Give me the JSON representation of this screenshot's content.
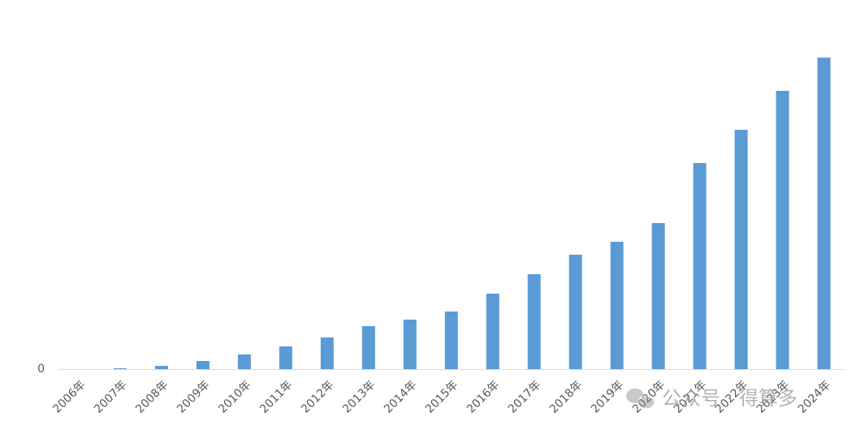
{
  "chart_data": {
    "type": "bar",
    "categories": [
      "2006年",
      "2007年",
      "2008年",
      "2009年",
      "2010年",
      "2011年",
      "2012年",
      "2013年",
      "2014年",
      "2015年",
      "2016年",
      "2017年",
      "2018年",
      "2019年",
      "2020年",
      "2021年",
      "2022年",
      "2023年",
      "2024年"
    ],
    "values": [
      0,
      1,
      4,
      10,
      18,
      28,
      39,
      53,
      61,
      71,
      93,
      117,
      141,
      157,
      180,
      254,
      295,
      343,
      384
    ],
    "color": "#5b9bd5",
    "ylim": [
      0,
      400
    ],
    "yticks": [
      0
    ],
    "grid": false
  },
  "watermark": "公众号 · 得算多"
}
